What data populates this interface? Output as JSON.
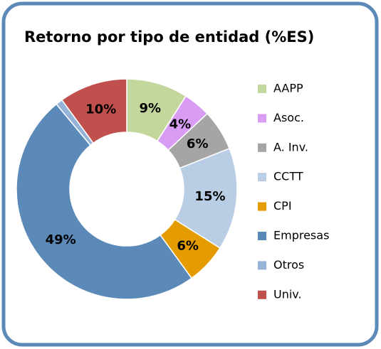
{
  "chart_data": {
    "type": "donut",
    "title": "Retorno por tipo de entidad (%ES)",
    "categories": [
      "AAPP",
      "Asoc.",
      "A. Inv.",
      "CCTT",
      "CPI",
      "Empresas",
      "Otros",
      "Univ."
    ],
    "values": [
      9,
      4,
      6,
      15,
      6,
      49,
      1,
      10
    ],
    "value_labels": [
      "9%",
      "4%",
      "6%",
      "15%",
      "6%",
      "49%",
      null,
      "10%"
    ],
    "colors": [
      "#c3d69b",
      "#d99cf5",
      "#a5a5a5",
      "#b9cde5",
      "#e59c00",
      "#5b8ab9",
      "#95b3d7",
      "#c0504d"
    ],
    "legend": "right"
  }
}
